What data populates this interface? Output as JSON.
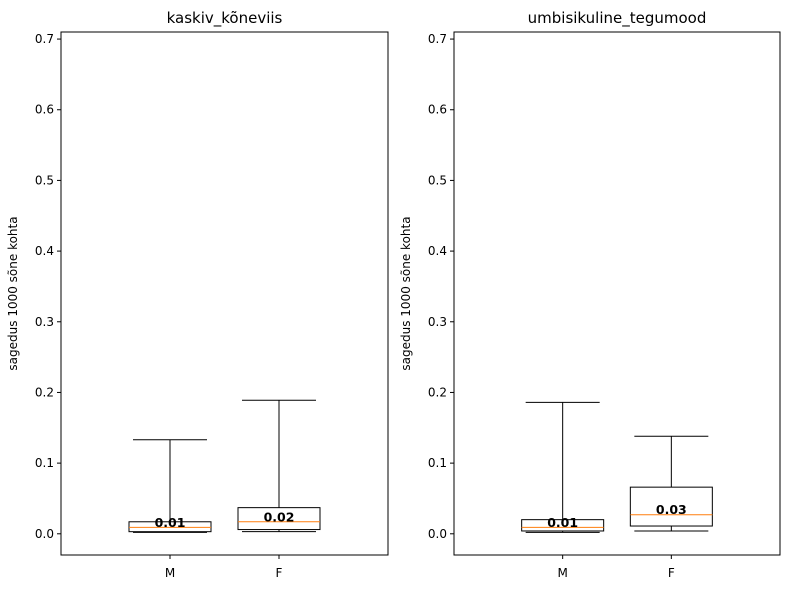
{
  "chart_data": [
    {
      "type": "box",
      "title": "kaskiv_kõneviis",
      "ylabel": "sagedus 1000 sõne kohta",
      "xlabel": "",
      "ylim": [
        -0.03,
        0.71
      ],
      "yticks": [
        0.0,
        0.1,
        0.2,
        0.3,
        0.4,
        0.5,
        0.6,
        0.7
      ],
      "ytick_labels": [
        "0.0",
        "0.1",
        "0.2",
        "0.3",
        "0.4",
        "0.5",
        "0.6",
        "0.7"
      ],
      "categories": [
        "M",
        "F"
      ],
      "boxes": [
        {
          "category": "M",
          "whislo": 0.002,
          "q1": 0.003,
          "med": 0.009,
          "q3": 0.017,
          "whishi": 0.133,
          "label": "0.01"
        },
        {
          "category": "F",
          "whislo": 0.003,
          "q1": 0.006,
          "med": 0.017,
          "q3": 0.037,
          "whishi": 0.189,
          "label": "0.02"
        }
      ]
    },
    {
      "type": "box",
      "title": "umbisikuline_tegumood",
      "ylabel": "sagedus 1000 sõne kohta",
      "xlabel": "",
      "ylim": [
        -0.03,
        0.71
      ],
      "yticks": [
        0.0,
        0.1,
        0.2,
        0.3,
        0.4,
        0.5,
        0.6,
        0.7
      ],
      "ytick_labels": [
        "0.0",
        "0.1",
        "0.2",
        "0.3",
        "0.4",
        "0.5",
        "0.6",
        "0.7"
      ],
      "categories": [
        "M",
        "F"
      ],
      "boxes": [
        {
          "category": "M",
          "whislo": 0.002,
          "q1": 0.004,
          "med": 0.009,
          "q3": 0.02,
          "whishi": 0.186,
          "label": "0.01"
        },
        {
          "category": "F",
          "whislo": 0.004,
          "q1": 0.011,
          "med": 0.027,
          "q3": 0.066,
          "whishi": 0.138,
          "label": "0.03"
        }
      ]
    }
  ],
  "colors": {
    "box": "#000000",
    "median": "#ff7f0e",
    "whisker": "#000000"
  }
}
